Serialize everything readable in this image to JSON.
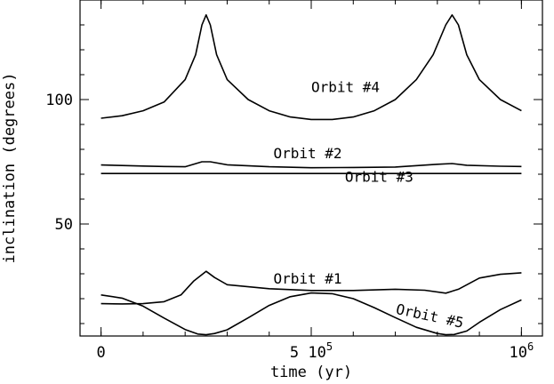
{
  "chart_data": {
    "type": "line",
    "xlabel": "time (yr)",
    "ylabel": "inclination (degrees)",
    "xlim": [
      -50000,
      1050000
    ],
    "ylim": [
      5,
      140
    ],
    "x_ticks": [
      {
        "value": 0,
        "label": "0"
      },
      {
        "value": 500000,
        "label": "5 10",
        "sup": "5"
      },
      {
        "value": 1000000,
        "label": "10",
        "sup": "6"
      }
    ],
    "y_ticks": [
      {
        "value": 50,
        "label": "50"
      },
      {
        "value": 100,
        "label": "100"
      }
    ],
    "series": [
      {
        "name": "Orbit #4",
        "label_at": [
          500000,
          103
        ],
        "points": [
          [
            0,
            92.5
          ],
          [
            50000,
            93.5
          ],
          [
            100000,
            95.5
          ],
          [
            150000,
            99
          ],
          [
            200000,
            108
          ],
          [
            225000,
            118
          ],
          [
            240000,
            130
          ],
          [
            250000,
            134
          ],
          [
            260000,
            130
          ],
          [
            275000,
            118
          ],
          [
            300000,
            108
          ],
          [
            350000,
            100
          ],
          [
            400000,
            95.5
          ],
          [
            450000,
            93
          ],
          [
            500000,
            92
          ],
          [
            550000,
            92
          ],
          [
            600000,
            93
          ],
          [
            650000,
            95.5
          ],
          [
            700000,
            100
          ],
          [
            750000,
            108
          ],
          [
            790000,
            118
          ],
          [
            820000,
            130
          ],
          [
            835000,
            134
          ],
          [
            850000,
            130
          ],
          [
            870000,
            118
          ],
          [
            900000,
            108
          ],
          [
            950000,
            100
          ],
          [
            1000000,
            95.5
          ]
        ]
      },
      {
        "name": "Orbit #2",
        "label_at": [
          410000,
          76.5
        ],
        "points": [
          [
            0,
            73.7
          ],
          [
            50000,
            73.5
          ],
          [
            100000,
            73.3
          ],
          [
            150000,
            73.1
          ],
          [
            200000,
            73
          ],
          [
            240000,
            75
          ],
          [
            260000,
            75
          ],
          [
            300000,
            73.8
          ],
          [
            400000,
            73
          ],
          [
            500000,
            72.6
          ],
          [
            600000,
            72.7
          ],
          [
            700000,
            72.9
          ],
          [
            800000,
            74
          ],
          [
            835000,
            74.3
          ],
          [
            870000,
            73.6
          ],
          [
            950000,
            73.2
          ],
          [
            1000000,
            73.1
          ]
        ]
      },
      {
        "name": "Orbit #3",
        "label_at": [
          580000,
          67
        ],
        "points": [
          [
            0,
            70.3
          ],
          [
            1000000,
            70.3
          ]
        ]
      },
      {
        "name": "Orbit #1",
        "label_at": [
          410000,
          26
        ],
        "points": [
          [
            0,
            18
          ],
          [
            50000,
            17.9
          ],
          [
            100000,
            18
          ],
          [
            150000,
            18.8
          ],
          [
            190000,
            21.5
          ],
          [
            220000,
            27
          ],
          [
            250000,
            31
          ],
          [
            270000,
            28.5
          ],
          [
            300000,
            25.6
          ],
          [
            400000,
            24
          ],
          [
            500000,
            23.3
          ],
          [
            600000,
            23.3
          ],
          [
            700000,
            23.8
          ],
          [
            770000,
            23.4
          ],
          [
            820000,
            22.2
          ],
          [
            850000,
            23.8
          ],
          [
            900000,
            28.3
          ],
          [
            950000,
            29.8
          ],
          [
            1000000,
            30.4
          ]
        ]
      },
      {
        "name": "Orbit #5",
        "label_at": [
          700000,
          14
        ],
        "points": [
          [
            0,
            21.5
          ],
          [
            50000,
            20.2
          ],
          [
            100000,
            17
          ],
          [
            150000,
            12.2
          ],
          [
            200000,
            7.6
          ],
          [
            230000,
            5.8
          ],
          [
            250000,
            5.5
          ],
          [
            270000,
            6
          ],
          [
            300000,
            7.5
          ],
          [
            350000,
            12.3
          ],
          [
            400000,
            17.3
          ],
          [
            450000,
            20.8
          ],
          [
            500000,
            22.3
          ],
          [
            550000,
            22
          ],
          [
            600000,
            20
          ],
          [
            650000,
            16.4
          ],
          [
            700000,
            12.4
          ],
          [
            750000,
            8.5
          ],
          [
            800000,
            6
          ],
          [
            820000,
            5.5
          ],
          [
            840000,
            5.6
          ],
          [
            870000,
            7
          ],
          [
            900000,
            10.5
          ],
          [
            950000,
            15.6
          ],
          [
            1000000,
            19.5
          ]
        ]
      }
    ]
  }
}
